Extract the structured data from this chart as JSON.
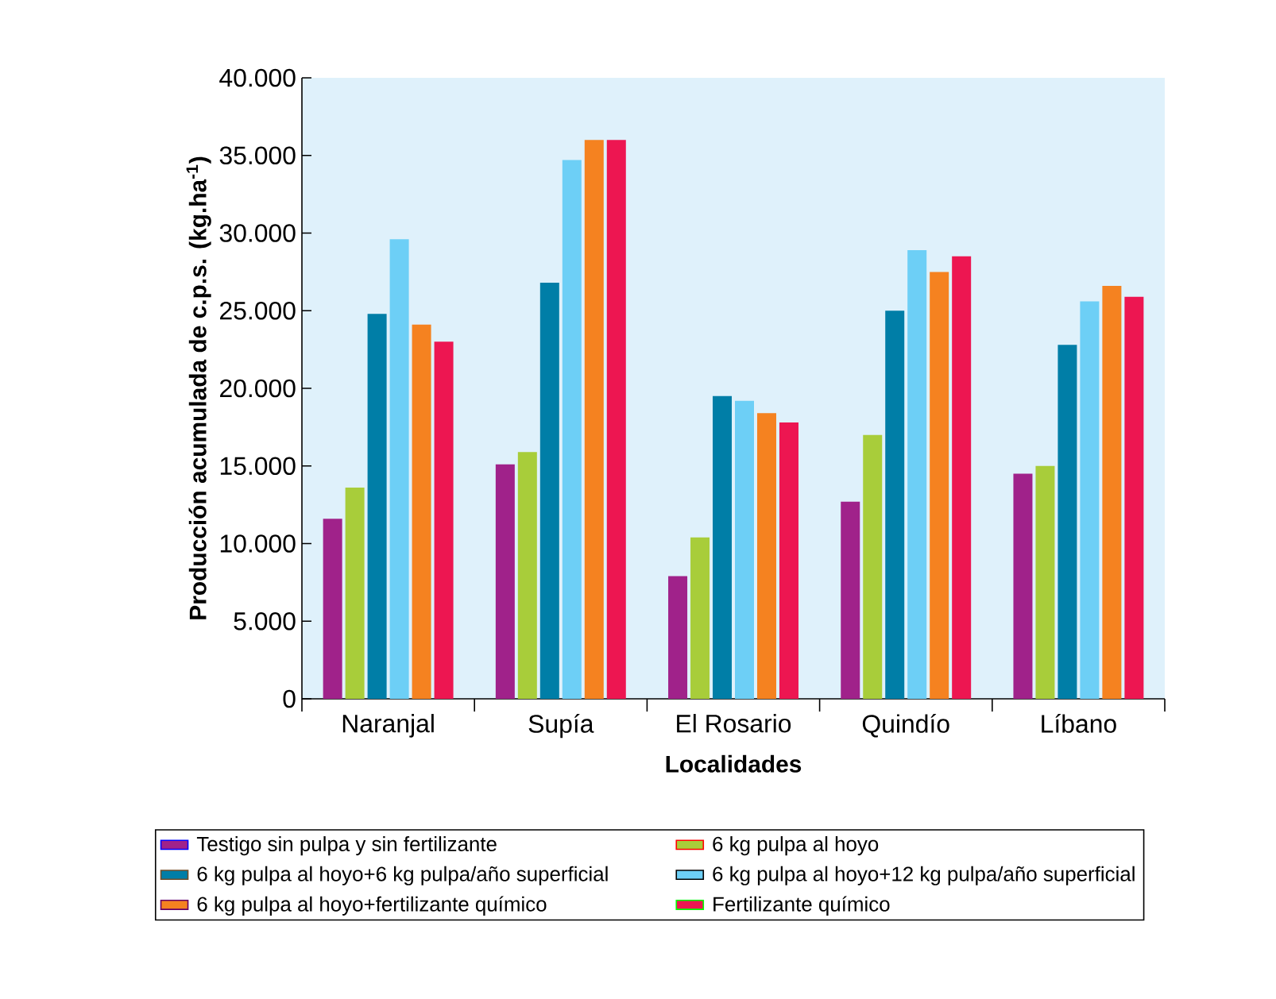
{
  "chart_data": {
    "type": "bar",
    "xlabel": "Localidades",
    "ylabel": "Producción acumulada de c.p.s. (kg.ha$^{-1}$)",
    "categories": [
      "Naranjal",
      "Supía",
      "El Rosario",
      "Quindío",
      "Líbano"
    ],
    "ylim": [
      0,
      40000
    ],
    "yticks": [
      0,
      {
        "value": 5000,
        "label": "5.000"
      },
      {
        "value": 10000,
        "label": "10.000"
      },
      {
        "value": 15000,
        "label": "15.000"
      },
      {
        "value": 20000,
        "label": "20.000"
      },
      {
        "value": 25000,
        "label": "25.000"
      },
      {
        "value": 30000,
        "label": "30.000"
      },
      {
        "value": 35000,
        "label": "35.000"
      },
      {
        "value": 40000,
        "label": "40.000"
      }
    ],
    "legend": "bottom",
    "series": [
      {
        "name": "Testigo sin pulpa y sin fertilizante",
        "color": "#a0228a",
        "values": [
          11600,
          15100,
          7900,
          12700,
          14500
        ]
      },
      {
        "name": "6 kg pulpa al hoyo",
        "color": "#a8cd3a",
        "values": [
          13600,
          15900,
          10400,
          17000,
          15000
        ]
      },
      {
        "name": "6 kg pulpa al hoyo+6 kg pulpa/año superficial",
        "color": "#007ea7",
        "values": [
          24800,
          26800,
          19500,
          25000,
          22800
        ]
      },
      {
        "name": "6 kg pulpa al hoyo+12 kg pulpa/año superficial",
        "color": "#6dcff6",
        "values": [
          29600,
          34700,
          19200,
          28900,
          25600
        ]
      },
      {
        "name": "6 kg pulpa al hoyo+fertilizante químico",
        "color": "#f58220",
        "values": [
          24100,
          36000,
          18400,
          27500,
          26600
        ]
      },
      {
        "name": "Fertilizante químico",
        "color": "#ed1651",
        "values": [
          23000,
          36000,
          17800,
          28500,
          25900
        ]
      }
    ]
  }
}
